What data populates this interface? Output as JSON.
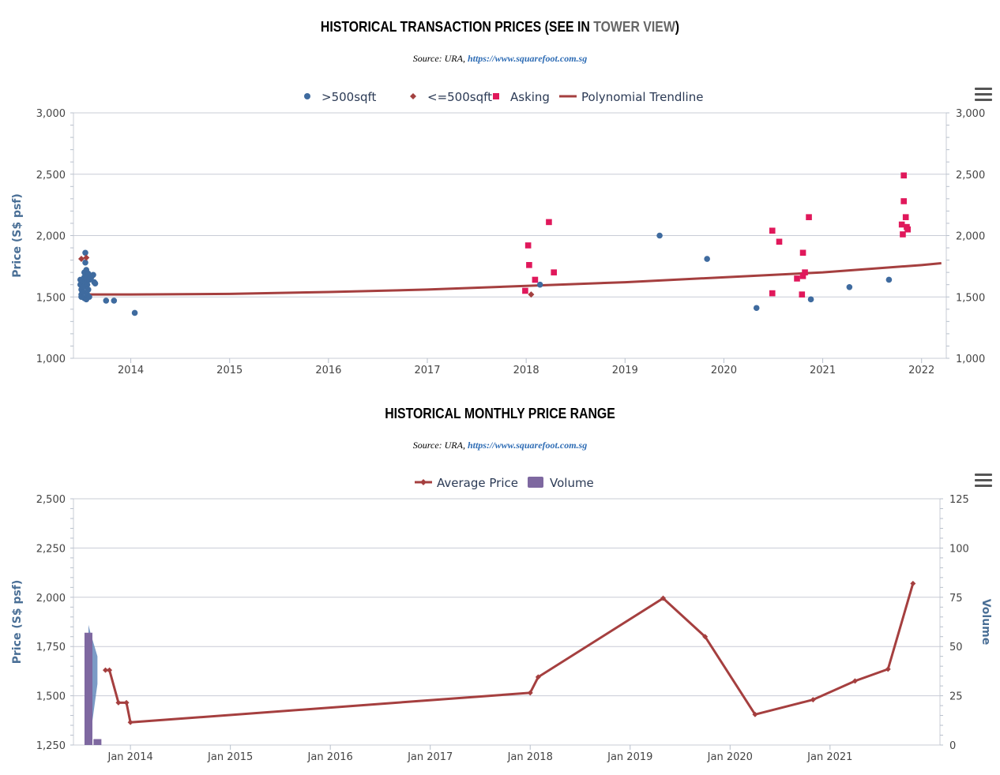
{
  "chart1": {
    "title_prefix": "HISTORICAL TRANSACTION PRICES (SEE IN ",
    "title_link": "TOWER VIEW",
    "title_suffix": ")",
    "source_prefix": "Source: URA, ",
    "source_link": "https://www.squarefoot.com.sg"
  },
  "chart2": {
    "title": "HISTORICAL MONTHLY PRICE RANGE",
    "source_prefix": "Source: URA, ",
    "source_link": "https://www.squarefoot.com.sg"
  },
  "colors": {
    "above500": "#3f6b9f",
    "below500": "#a3403f",
    "asking": "#e0185b",
    "trend": "#a53f3f",
    "volume": "#7e68a0",
    "axisTitle": "#4a6f96",
    "grid": "#c8ccd6"
  },
  "chart_data": [
    {
      "type": "scatter",
      "ylabel": "Price (S$ psf)",
      "ylim": [
        1000,
        3000
      ],
      "y_ticks": [
        "1,000",
        "1,500",
        "2,000",
        "2,500",
        "3,000"
      ],
      "x_ticks": [
        "2014",
        "2015",
        "2016",
        "2017",
        "2018",
        "2019",
        "2020",
        "2021",
        "2022"
      ],
      "xlim": [
        2013.42,
        2022.25
      ],
      "legend_position": "top-center",
      "series": [
        {
          "name": ">500sqft",
          "marker": "circle",
          "points": [
            [
              2013.49,
              1640
            ],
            [
              2013.49,
              1600
            ],
            [
              2013.5,
              1560
            ],
            [
              2013.5,
              1520
            ],
            [
              2013.5,
              1500
            ],
            [
              2013.51,
              1630
            ],
            [
              2013.52,
              1580
            ],
            [
              2013.52,
              1540
            ],
            [
              2013.53,
              1490
            ],
            [
              2013.53,
              1660
            ],
            [
              2013.53,
              1700
            ],
            [
              2013.54,
              1860
            ],
            [
              2013.54,
              1780
            ],
            [
              2013.54,
              1620
            ],
            [
              2013.55,
              1720
            ],
            [
              2013.55,
              1480
            ],
            [
              2013.55,
              1650
            ],
            [
              2013.56,
              1600
            ],
            [
              2013.56,
              1520
            ],
            [
              2013.57,
              1690
            ],
            [
              2013.57,
              1560
            ],
            [
              2013.58,
              1500
            ],
            [
              2013.58,
              1640
            ],
            [
              2013.6,
              1660
            ],
            [
              2013.62,
              1680
            ],
            [
              2013.63,
              1620
            ],
            [
              2013.64,
              1610
            ],
            [
              2013.75,
              1470
            ],
            [
              2013.83,
              1470
            ],
            [
              2014.04,
              1370
            ],
            [
              2018.14,
              1600
            ],
            [
              2019.35,
              2000
            ],
            [
              2019.83,
              1810
            ],
            [
              2020.33,
              1410
            ],
            [
              2020.88,
              1480
            ],
            [
              2021.27,
              1580
            ],
            [
              2021.67,
              1640
            ]
          ]
        },
        {
          "name": "<=500sqft",
          "marker": "diamond",
          "points": [
            [
              2013.5,
              1810
            ],
            [
              2013.55,
              1820
            ],
            [
              2018.05,
              1520
            ]
          ]
        },
        {
          "name": "Asking",
          "marker": "square",
          "points": [
            [
              2017.99,
              1550
            ],
            [
              2018.02,
              1920
            ],
            [
              2018.03,
              1760
            ],
            [
              2018.09,
              1640
            ],
            [
              2018.23,
              2110
            ],
            [
              2018.28,
              1700
            ],
            [
              2020.49,
              2040
            ],
            [
              2020.49,
              1530
            ],
            [
              2020.56,
              1950
            ],
            [
              2020.74,
              1650
            ],
            [
              2020.79,
              1520
            ],
            [
              2020.8,
              1860
            ],
            [
              2020.8,
              1670
            ],
            [
              2020.82,
              1700
            ],
            [
              2020.86,
              2150
            ],
            [
              2021.8,
              2090
            ],
            [
              2021.81,
              2010
            ],
            [
              2021.82,
              2490
            ],
            [
              2021.82,
              2280
            ],
            [
              2021.84,
              2150
            ],
            [
              2021.85,
              2070
            ],
            [
              2021.86,
              2050
            ]
          ]
        },
        {
          "name": "Polynomial Trendline",
          "marker": "line",
          "points": [
            [
              2013.55,
              1520
            ],
            [
              2014.0,
              1520
            ],
            [
              2015.0,
              1525
            ],
            [
              2016.0,
              1540
            ],
            [
              2017.0,
              1560
            ],
            [
              2018.0,
              1590
            ],
            [
              2019.0,
              1620
            ],
            [
              2020.0,
              1660
            ],
            [
              2021.0,
              1700
            ],
            [
              2022.0,
              1760
            ],
            [
              2022.2,
              1775
            ]
          ]
        }
      ]
    },
    {
      "type": "line",
      "ylabel": "Price (S$ psf)",
      "ylabel_right": "Volume",
      "ylim": [
        1250,
        2500
      ],
      "ylim_right": [
        0,
        125
      ],
      "y_ticks": [
        "1,250",
        "1,500",
        "1,750",
        "2,000",
        "2,250",
        "2,500"
      ],
      "y_ticks_right": [
        "0",
        "25",
        "50",
        "75",
        "100",
        "125"
      ],
      "x_ticks": [
        "Jan 2014",
        "Jan 2015",
        "Jan 2016",
        "Jan 2017",
        "Jan 2018",
        "Jan 2019",
        "Jan 2020",
        "Jan 2021"
      ],
      "xlim": [
        2013.43,
        2022.1
      ],
      "legend_position": "top-center",
      "series": [
        {
          "name": "Average Price",
          "points": [
            [
              2013.75,
              1630
            ],
            [
              2013.79,
              1630
            ],
            [
              2013.88,
              1465
            ],
            [
              2013.96,
              1465
            ],
            [
              2014.0,
              1365
            ],
            [
              2018.0,
              1515
            ],
            [
              2018.08,
              1595
            ],
            [
              2019.33,
              1995
            ],
            [
              2019.75,
              1800
            ],
            [
              2020.25,
              1405
            ],
            [
              2020.83,
              1480
            ],
            [
              2021.25,
              1575
            ],
            [
              2021.58,
              1635
            ],
            [
              2021.83,
              2070
            ]
          ]
        },
        {
          "name": "Volume",
          "type": "bar",
          "points": [
            [
              2013.58,
              57
            ],
            [
              2013.67,
              3
            ]
          ]
        }
      ],
      "range_band": [
        [
          2013.58,
          1860,
          1250
        ],
        [
          2013.6,
          1820,
          1300
        ],
        [
          2013.67,
          1700,
          1560
        ]
      ]
    }
  ]
}
